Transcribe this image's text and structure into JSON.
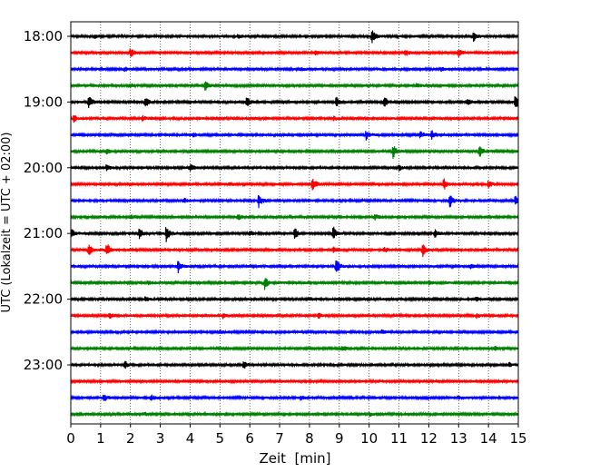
{
  "chart_data": {
    "type": "line",
    "title": "",
    "xlabel": "Zeit  [min]",
    "ylabel": "UTC (Lokalzeit = UTC + 02:00)",
    "xlim": [
      0,
      15
    ],
    "x_ticks": [
      0,
      1,
      2,
      3,
      4,
      5,
      6,
      7,
      8,
      9,
      10,
      11,
      12,
      13,
      14,
      15
    ],
    "y_ticks": [
      "18:00",
      "19:00",
      "20:00",
      "21:00",
      "22:00",
      "23:00"
    ],
    "grid": "vertical dotted",
    "trace_interval_min": 15,
    "rows": [
      {
        "start": "18:00",
        "color": "#000000",
        "events": [
          {
            "t": 10.1,
            "a": 1.0
          },
          {
            "t": 13.5,
            "a": 0.7
          },
          {
            "t": 0.8,
            "a": 0.3
          },
          {
            "t": 5.6,
            "a": 0.3
          }
        ]
      },
      {
        "start": "18:15",
        "color": "#ff0000",
        "events": [
          {
            "t": 2.0,
            "a": 0.7
          },
          {
            "t": 11.2,
            "a": 0.6
          },
          {
            "t": 13.0,
            "a": 0.5
          },
          {
            "t": 8.2,
            "a": 0.3
          }
        ]
      },
      {
        "start": "18:30",
        "color": "#0000ff",
        "events": [
          {
            "t": 1.8,
            "a": 0.3
          },
          {
            "t": 7.7,
            "a": 0.3
          },
          {
            "t": 12.4,
            "a": 0.3
          }
        ]
      },
      {
        "start": "18:45",
        "color": "#008000",
        "events": [
          {
            "t": 4.5,
            "a": 0.7
          },
          {
            "t": 2.0,
            "a": 0.3
          },
          {
            "t": 11.6,
            "a": 0.3
          }
        ]
      },
      {
        "start": "19:00",
        "color": "#000000",
        "events": [
          {
            "t": 0.6,
            "a": 1.0
          },
          {
            "t": 2.5,
            "a": 0.8
          },
          {
            "t": 5.9,
            "a": 0.8
          },
          {
            "t": 8.9,
            "a": 0.7
          },
          {
            "t": 10.5,
            "a": 0.9
          },
          {
            "t": 14.9,
            "a": 1.0
          },
          {
            "t": 13.3,
            "a": 0.5
          }
        ]
      },
      {
        "start": "19:15",
        "color": "#ff0000",
        "events": [
          {
            "t": 0.1,
            "a": 0.5
          },
          {
            "t": 2.4,
            "a": 0.4
          },
          {
            "t": 8.8,
            "a": 0.3
          }
        ]
      },
      {
        "start": "19:30",
        "color": "#0000ff",
        "events": [
          {
            "t": 9.9,
            "a": 0.7
          },
          {
            "t": 11.7,
            "a": 0.6
          },
          {
            "t": 12.1,
            "a": 0.6
          },
          {
            "t": 4.1,
            "a": 0.3
          }
        ]
      },
      {
        "start": "19:45",
        "color": "#008000",
        "events": [
          {
            "t": 10.8,
            "a": 1.0
          },
          {
            "t": 13.7,
            "a": 1.0
          },
          {
            "t": 1.2,
            "a": 0.3
          }
        ]
      },
      {
        "start": "20:00",
        "color": "#000000",
        "events": [
          {
            "t": 1.2,
            "a": 0.5
          },
          {
            "t": 4.0,
            "a": 0.6
          },
          {
            "t": 11.0,
            "a": 0.4
          }
        ]
      },
      {
        "start": "20:15",
        "color": "#ff0000",
        "events": [
          {
            "t": 8.1,
            "a": 1.0
          },
          {
            "t": 12.5,
            "a": 0.9
          },
          {
            "t": 14.0,
            "a": 0.6
          },
          {
            "t": 5.3,
            "a": 0.3
          }
        ]
      },
      {
        "start": "20:30",
        "color": "#0000ff",
        "events": [
          {
            "t": 6.3,
            "a": 1.0
          },
          {
            "t": 12.7,
            "a": 1.1
          },
          {
            "t": 14.9,
            "a": 0.8
          },
          {
            "t": 3.8,
            "a": 0.3
          }
        ]
      },
      {
        "start": "20:45",
        "color": "#008000",
        "events": [
          {
            "t": 5.6,
            "a": 0.4
          },
          {
            "t": 10.2,
            "a": 0.4
          },
          {
            "t": 2.0,
            "a": 0.3
          }
        ]
      },
      {
        "start": "21:00",
        "color": "#000000",
        "events": [
          {
            "t": 0.0,
            "a": 0.8
          },
          {
            "t": 2.3,
            "a": 0.8
          },
          {
            "t": 3.2,
            "a": 1.2
          },
          {
            "t": 7.5,
            "a": 0.9
          },
          {
            "t": 8.8,
            "a": 1.0
          },
          {
            "t": 12.2,
            "a": 0.6
          },
          {
            "t": 6.0,
            "a": 0.4
          }
        ]
      },
      {
        "start": "21:15",
        "color": "#ff0000",
        "events": [
          {
            "t": 0.6,
            "a": 0.8
          },
          {
            "t": 1.2,
            "a": 1.1
          },
          {
            "t": 11.8,
            "a": 0.9
          },
          {
            "t": 8.8,
            "a": 0.4
          },
          {
            "t": 10.5,
            "a": 0.4
          }
        ]
      },
      {
        "start": "21:30",
        "color": "#0000ff",
        "events": [
          {
            "t": 3.6,
            "a": 1.0
          },
          {
            "t": 8.9,
            "a": 1.2
          },
          {
            "t": 13.4,
            "a": 0.3
          }
        ]
      },
      {
        "start": "21:45",
        "color": "#008000",
        "events": [
          {
            "t": 6.5,
            "a": 0.9
          },
          {
            "t": 2.6,
            "a": 0.3
          },
          {
            "t": 12.0,
            "a": 0.3
          }
        ]
      },
      {
        "start": "22:00",
        "color": "#000000",
        "events": [
          {
            "t": 2.5,
            "a": 0.4
          },
          {
            "t": 13.6,
            "a": 0.3
          },
          {
            "t": 8.0,
            "a": 0.2
          }
        ]
      },
      {
        "start": "22:15",
        "color": "#ff0000",
        "events": [
          {
            "t": 1.3,
            "a": 0.4
          },
          {
            "t": 5.1,
            "a": 0.4
          },
          {
            "t": 8.3,
            "a": 0.4
          },
          {
            "t": 13.6,
            "a": 0.3
          }
        ]
      },
      {
        "start": "22:30",
        "color": "#0000ff",
        "events": [
          {
            "t": 5.0,
            "a": 0.3
          },
          {
            "t": 10.4,
            "a": 0.3
          }
        ]
      },
      {
        "start": "22:45",
        "color": "#008000",
        "events": [
          {
            "t": 9.1,
            "a": 0.5
          },
          {
            "t": 14.2,
            "a": 0.3
          }
        ]
      },
      {
        "start": "23:00",
        "color": "#000000",
        "events": [
          {
            "t": 1.8,
            "a": 0.6
          },
          {
            "t": 5.8,
            "a": 0.7
          },
          {
            "t": 14.7,
            "a": 0.3
          }
        ]
      },
      {
        "start": "23:15",
        "color": "#ff0000",
        "events": [
          {
            "t": 7.0,
            "a": 0.2
          }
        ]
      },
      {
        "start": "23:30",
        "color": "#0000ff",
        "events": [
          {
            "t": 1.1,
            "a": 0.7
          },
          {
            "t": 2.7,
            "a": 0.5
          },
          {
            "t": 7.7,
            "a": 0.3
          },
          {
            "t": 13.0,
            "a": 0.3
          }
        ]
      },
      {
        "start": "23:45",
        "color": "#008000",
        "events": [
          {
            "t": 10.0,
            "a": 0.3
          },
          {
            "t": 2.5,
            "a": 0.2
          }
        ]
      }
    ]
  }
}
